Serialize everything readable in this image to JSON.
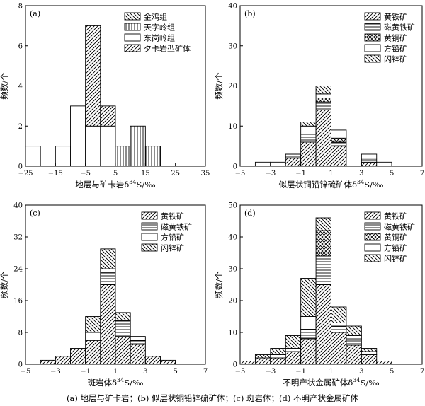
{
  "caption": "(a) 地层与矿卡岩；(b) 似层状铜铅锌硫矿体；(c) 斑岩体；(d) 不明产状金属矿体",
  "chart_data": [
    {
      "type": "bar",
      "stacked": true,
      "panel": "(a)",
      "xlabel": "地层与矿卡岩δ34S/‰",
      "ylabel": "频数/个",
      "xlim": [
        -25,
        35
      ],
      "ylim": [
        0,
        8
      ],
      "xticks": [
        -25,
        -15,
        -5,
        5,
        15,
        25,
        35
      ],
      "yticks": [
        0,
        2,
        4,
        6,
        8
      ],
      "bin_width": 5,
      "bins_start": [
        -25,
        -15,
        -10,
        -5,
        0,
        5,
        10,
        15
      ],
      "legend_position": "top-right",
      "series": [
        {
          "name": "金鸡组",
          "pattern": "hatch-left",
          "values": [
            0,
            0,
            0,
            0,
            0,
            0,
            0,
            0
          ]
        },
        {
          "name": "天字岭组",
          "pattern": "vertical",
          "values": [
            0,
            0,
            0,
            0,
            0,
            1,
            2,
            1
          ]
        },
        {
          "name": "东岗岭组",
          "pattern": "empty",
          "values": [
            1,
            1,
            3,
            2,
            2,
            0,
            0,
            0
          ]
        },
        {
          "name": "夕卡岩型矿体",
          "pattern": "hatch-right",
          "values": [
            0,
            0,
            0,
            5,
            1,
            0,
            0,
            0
          ]
        }
      ]
    },
    {
      "type": "bar",
      "stacked": true,
      "panel": "(b)",
      "xlabel": "似层状铜铅锌硫矿体δ34S/‰",
      "ylabel": "频数/个",
      "xlim": [
        -5,
        7
      ],
      "ylim": [
        0,
        40
      ],
      "xticks": [
        -5,
        -3,
        -1,
        1,
        3,
        5,
        7
      ],
      "yticks": [
        0,
        10,
        20,
        30,
        40
      ],
      "bin_width": 1,
      "bins_start": [
        -4,
        -3,
        -2,
        -1,
        0,
        1,
        2,
        3,
        4
      ],
      "legend_position": "top-right",
      "series": [
        {
          "name": "黄铁矿",
          "pattern": "hatch-right",
          "values": [
            0,
            0,
            2,
            6,
            14,
            5,
            0,
            1,
            0
          ]
        },
        {
          "name": "磁黄铁矿",
          "pattern": "horizontal",
          "values": [
            0,
            0,
            1,
            2,
            2,
            1,
            0,
            1,
            0
          ]
        },
        {
          "name": "黄铜矿",
          "pattern": "crosshatch",
          "values": [
            0,
            0,
            0,
            0,
            1,
            1,
            0,
            0,
            0
          ]
        },
        {
          "name": "方铅矿",
          "pattern": "empty",
          "values": [
            1,
            1,
            0,
            2,
            1,
            2,
            0,
            1,
            1
          ]
        },
        {
          "name": "闪锌矿",
          "pattern": "hatch-left",
          "values": [
            0,
            0,
            0,
            1,
            2,
            0,
            0,
            0,
            0
          ]
        }
      ]
    },
    {
      "type": "bar",
      "stacked": true,
      "panel": "(c)",
      "xlabel": "斑岩体δ34S/‰",
      "ylabel": "频数/个",
      "xlim": [
        -5,
        7
      ],
      "ylim": [
        0,
        40
      ],
      "xticks": [
        -5,
        -3,
        -1,
        1,
        3,
        5,
        7
      ],
      "yticks": [
        0,
        8,
        16,
        24,
        32,
        40
      ],
      "bin_width": 1,
      "bins_start": [
        -4,
        -3,
        -2,
        -1,
        0,
        1,
        2,
        3,
        4
      ],
      "legend_position": "top-right",
      "series": [
        {
          "name": "黄铁矿",
          "pattern": "hatch-right",
          "values": [
            1,
            2,
            4,
            6,
            20,
            7,
            5,
            2,
            1
          ]
        },
        {
          "name": "磁黄铁矿",
          "pattern": "horizontal",
          "values": [
            0,
            0,
            0,
            0,
            3,
            4,
            1,
            0,
            0
          ]
        },
        {
          "name": "方铅矿",
          "pattern": "empty",
          "values": [
            0,
            0,
            0,
            2,
            1,
            0,
            1,
            0,
            0
          ]
        },
        {
          "name": "闪锌矿",
          "pattern": "hatch-left",
          "values": [
            0,
            0,
            0,
            4,
            5,
            2,
            0,
            0,
            0
          ]
        }
      ]
    },
    {
      "type": "bar",
      "stacked": true,
      "panel": "(d)",
      "xlabel": "不明产状金属矿体δ34S/‰",
      "ylabel": "频数/个",
      "xlim": [
        -5,
        7
      ],
      "ylim": [
        0,
        50
      ],
      "xticks": [
        -5,
        -3,
        -1,
        1,
        3,
        5,
        7
      ],
      "yticks": [
        0,
        10,
        20,
        30,
        40,
        50
      ],
      "bin_width": 1,
      "bins_start": [
        -5,
        -4,
        -3,
        -2,
        -1,
        0,
        1,
        2,
        3,
        4
      ],
      "legend_position": "top-right",
      "series": [
        {
          "name": "黄铁矿",
          "pattern": "hatch-right",
          "values": [
            1,
            2,
            2,
            4,
            8,
            25,
            10,
            6,
            3,
            1
          ]
        },
        {
          "name": "磁黄铁矿",
          "pattern": "horizontal",
          "values": [
            0,
            0,
            0,
            0,
            3,
            9,
            2,
            2,
            0,
            0
          ]
        },
        {
          "name": "黄铜矿",
          "pattern": "crosshatch",
          "values": [
            0,
            0,
            0,
            0,
            0,
            8,
            0,
            0,
            0,
            0
          ]
        },
        {
          "name": "方铅矿",
          "pattern": "empty",
          "values": [
            0,
            0,
            1,
            1,
            4,
            0,
            1,
            1,
            1,
            0
          ]
        },
        {
          "name": "闪锌矿",
          "pattern": "hatch-left",
          "values": [
            0,
            1,
            2,
            4,
            12,
            4,
            5,
            3,
            1,
            0
          ]
        }
      ]
    }
  ]
}
